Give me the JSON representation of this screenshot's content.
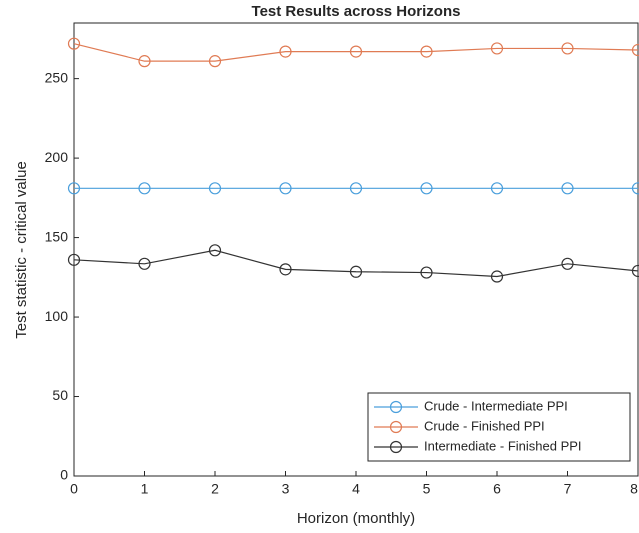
{
  "chart_data": {
    "type": "line",
    "title": "Test Results across Horizons",
    "xlabel": "Horizon (monthly)",
    "ylabel": "Test statistic - critical value",
    "x": [
      0,
      1,
      2,
      3,
      4,
      5,
      6,
      7,
      8
    ],
    "xlim": [
      0,
      8
    ],
    "xticks": [
      0,
      1,
      2,
      3,
      4,
      5,
      6,
      7,
      8
    ],
    "ylim": [
      0,
      285
    ],
    "yticks": [
      0,
      50,
      100,
      150,
      200,
      250
    ],
    "legend": "southeast",
    "marker": "circle",
    "series": [
      {
        "name": "Crude - Intermediate PPI",
        "color": "#4a9fdc",
        "values": [
          181,
          181,
          181,
          181,
          181,
          181,
          181,
          181,
          181
        ]
      },
      {
        "name": "Crude - Finished PPI",
        "color": "#e07b54",
        "values": [
          272,
          261,
          261,
          267,
          267,
          267,
          269,
          269,
          268
        ]
      },
      {
        "name": "Intermediate - Finished PPI",
        "color": "#333333",
        "values": [
          136,
          133.5,
          142,
          130,
          128.5,
          128,
          125.5,
          133.5,
          129
        ]
      }
    ]
  }
}
